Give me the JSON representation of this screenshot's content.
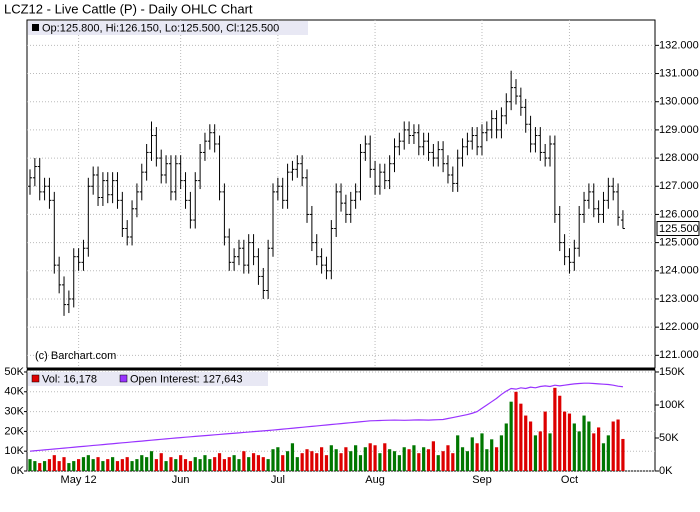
{
  "chart_data": [
    {
      "type": "ohlc",
      "title": "LCZ12 - Live Cattle (P) - Daily OHLC Chart",
      "info": "Op:125.800, Hi:126.150, Lo:125.500, Cl:125.500",
      "annotation": "(c) Barchart.com",
      "last_label": {
        "value": 125.5,
        "label": "125.500"
      },
      "color": "#000000",
      "grid": true,
      "ylim": [
        120.55,
        132.9
      ],
      "yticks": [
        {
          "value": 121,
          "label": "121.000"
        },
        {
          "value": 122,
          "label": "122.000"
        },
        {
          "value": 123,
          "label": "123.000"
        },
        {
          "value": 124,
          "label": "124.000"
        },
        {
          "value": 125,
          "label": "125.000"
        },
        {
          "value": 126,
          "label": "126.000"
        },
        {
          "value": 127,
          "label": "127.000"
        },
        {
          "value": 128,
          "label": "128.000"
        },
        {
          "value": 129,
          "label": "129.000"
        },
        {
          "value": 130,
          "label": "130.000"
        },
        {
          "value": 131,
          "label": "131.000"
        },
        {
          "value": 132,
          "label": "132.000"
        }
      ],
      "categories": [
        null,
        null,
        null,
        null,
        null,
        null,
        null,
        null,
        null,
        null,
        "May 12",
        null,
        null,
        null,
        null,
        null,
        null,
        null,
        null,
        null,
        null,
        null,
        null,
        null,
        null,
        null,
        null,
        null,
        null,
        null,
        null,
        "Jun",
        null,
        null,
        null,
        null,
        null,
        null,
        null,
        null,
        null,
        null,
        null,
        null,
        null,
        null,
        null,
        null,
        null,
        null,
        null,
        "Jul",
        null,
        null,
        null,
        null,
        null,
        null,
        null,
        null,
        null,
        null,
        null,
        null,
        null,
        null,
        null,
        null,
        null,
        null,
        null,
        "Aug",
        null,
        null,
        null,
        null,
        null,
        null,
        null,
        null,
        null,
        null,
        null,
        null,
        null,
        null,
        null,
        null,
        null,
        null,
        null,
        null,
        null,
        "Sep",
        null,
        null,
        null,
        null,
        null,
        null,
        null,
        null,
        null,
        null,
        null,
        null,
        null,
        null,
        null,
        null,
        null,
        "Oct",
        null,
        null,
        null,
        null,
        null,
        null,
        null,
        null,
        null,
        null,
        null
      ],
      "open": [
        127.0,
        127.3,
        127.7,
        126.8,
        127.0,
        126.5,
        124.2,
        123.5,
        122.8,
        123.0,
        124.5,
        124.3,
        124.8,
        127.0,
        127.4,
        126.6,
        127.2,
        126.7,
        127.2,
        126.5,
        125.5,
        125.2,
        126.2,
        126.8,
        127.5,
        128.2,
        128.8,
        128.0,
        127.4,
        127.8,
        126.8,
        127.8,
        127.2,
        126.5,
        125.8,
        127.2,
        128.2,
        128.6,
        128.9,
        128.5,
        126.8,
        125.2,
        124.3,
        124.5,
        124.8,
        124.2,
        125.0,
        124.5,
        123.8,
        123.3,
        124.8,
        126.8,
        127.0,
        126.5,
        127.5,
        127.6,
        127.8,
        127.3,
        126.0,
        125.0,
        124.5,
        124.2,
        124.0,
        125.5,
        126.8,
        126.4,
        126.0,
        126.5,
        126.8,
        128.2,
        128.5,
        127.6,
        127.0,
        127.5,
        127.2,
        127.8,
        128.4,
        128.6,
        129.0,
        128.8,
        128.9,
        128.4,
        128.6,
        128.2,
        128.0,
        128.3,
        127.8,
        127.4,
        127.1,
        128.0,
        128.4,
        128.6,
        128.8,
        128.4,
        128.9,
        129.0,
        129.4,
        129.0,
        129.5,
        130.0,
        130.5,
        130.2,
        129.8,
        129.2,
        128.5,
        128.8,
        128.2,
        128.0,
        128.5,
        126.0,
        125.0,
        124.5,
        124.3,
        124.8,
        126.0,
        126.5,
        126.8,
        126.2,
        126.0,
        126.5,
        127.0,
        126.8,
        125.8
      ],
      "high": [
        127.6,
        128.0,
        128.0,
        127.3,
        127.3,
        126.8,
        124.5,
        123.8,
        123.3,
        124.8,
        124.8,
        125.1,
        127.3,
        127.7,
        127.7,
        127.5,
        127.5,
        127.5,
        127.5,
        126.8,
        125.8,
        126.5,
        127.1,
        127.8,
        128.5,
        129.3,
        129.1,
        128.3,
        128.1,
        128.1,
        128.1,
        128.1,
        127.5,
        126.8,
        127.5,
        128.5,
        128.9,
        129.2,
        129.2,
        128.8,
        127.1,
        125.5,
        124.8,
        125.1,
        125.1,
        125.3,
        125.3,
        124.8,
        124.1,
        125.1,
        127.1,
        127.3,
        127.3,
        127.8,
        127.9,
        128.1,
        128.1,
        127.6,
        126.3,
        125.3,
        124.8,
        124.5,
        125.8,
        127.1,
        127.1,
        126.7,
        126.8,
        127.1,
        128.5,
        128.8,
        128.8,
        127.9,
        127.8,
        127.8,
        128.1,
        128.7,
        128.9,
        129.3,
        129.3,
        129.2,
        129.2,
        128.9,
        128.9,
        128.5,
        128.6,
        128.6,
        128.1,
        127.7,
        128.3,
        128.7,
        128.9,
        129.1,
        129.1,
        129.2,
        129.3,
        129.7,
        129.7,
        129.8,
        130.3,
        131.1,
        130.8,
        130.5,
        130.1,
        129.5,
        129.1,
        129.1,
        128.5,
        128.8,
        128.8,
        126.3,
        125.3,
        124.8,
        125.1,
        126.3,
        126.8,
        127.1,
        127.1,
        126.5,
        126.8,
        127.3,
        127.3,
        127.1,
        126.15
      ],
      "low": [
        126.7,
        127.0,
        126.5,
        126.5,
        126.2,
        123.9,
        123.2,
        122.4,
        122.5,
        122.7,
        124.0,
        124.0,
        124.5,
        126.7,
        126.3,
        126.3,
        126.4,
        126.4,
        126.2,
        125.2,
        124.9,
        124.9,
        125.9,
        126.5,
        127.2,
        127.9,
        127.7,
        127.1,
        127.1,
        126.5,
        126.5,
        126.9,
        126.2,
        125.5,
        125.5,
        126.9,
        127.9,
        128.3,
        128.2,
        126.5,
        124.9,
        124.0,
        124.0,
        124.2,
        123.9,
        123.9,
        124.2,
        123.5,
        123.0,
        123.0,
        124.5,
        126.5,
        126.2,
        126.2,
        127.2,
        127.3,
        127.0,
        125.7,
        124.7,
        124.2,
        123.9,
        123.7,
        123.7,
        125.2,
        126.1,
        125.7,
        125.7,
        126.2,
        126.5,
        127.9,
        127.3,
        126.7,
        126.7,
        126.9,
        126.9,
        127.5,
        128.1,
        128.3,
        128.5,
        128.5,
        128.1,
        128.1,
        127.9,
        127.7,
        127.7,
        127.5,
        127.1,
        126.8,
        126.8,
        127.7,
        128.1,
        128.3,
        128.1,
        128.1,
        128.6,
        128.7,
        128.7,
        128.7,
        129.2,
        129.7,
        129.9,
        129.5,
        128.9,
        128.2,
        128.2,
        127.9,
        127.7,
        127.7,
        125.7,
        124.7,
        124.2,
        123.9,
        124.0,
        124.5,
        125.7,
        126.2,
        125.9,
        125.7,
        125.7,
        126.2,
        126.5,
        125.6,
        125.5
      ],
      "close": [
        127.3,
        127.7,
        126.8,
        127.0,
        126.5,
        124.2,
        123.5,
        122.8,
        123.0,
        124.5,
        124.3,
        124.8,
        127.0,
        127.4,
        126.6,
        127.2,
        126.7,
        127.2,
        126.5,
        125.5,
        125.2,
        126.2,
        126.8,
        127.5,
        128.2,
        128.8,
        128.0,
        127.4,
        127.8,
        126.8,
        127.8,
        127.2,
        126.5,
        125.8,
        127.2,
        128.2,
        128.6,
        128.9,
        128.5,
        126.8,
        125.2,
        124.3,
        124.5,
        124.8,
        124.2,
        125.0,
        124.5,
        123.8,
        123.3,
        124.8,
        126.8,
        127.0,
        126.5,
        127.5,
        127.6,
        127.8,
        127.3,
        126.0,
        125.0,
        124.5,
        124.2,
        124.0,
        125.5,
        126.8,
        126.4,
        126.0,
        126.5,
        126.8,
        128.2,
        128.5,
        127.6,
        127.0,
        127.5,
        127.2,
        127.8,
        128.4,
        128.6,
        129.0,
        128.8,
        128.9,
        128.4,
        128.6,
        128.2,
        128.0,
        128.3,
        127.8,
        127.4,
        127.1,
        128.0,
        128.4,
        128.6,
        128.8,
        128.4,
        128.9,
        129.0,
        129.4,
        129.0,
        129.5,
        130.0,
        130.5,
        130.2,
        129.8,
        129.2,
        128.5,
        128.8,
        128.2,
        128.0,
        128.5,
        126.0,
        125.0,
        124.5,
        124.3,
        124.8,
        126.0,
        126.5,
        126.8,
        126.2,
        126.0,
        126.5,
        127.0,
        126.8,
        125.9,
        125.5
      ]
    },
    {
      "type": "volume",
      "grid": true,
      "ylim": [
        0,
        51000
      ],
      "yticks": [
        {
          "value": 0,
          "label": "0K"
        },
        {
          "value": 10000,
          "label": "10K"
        },
        {
          "value": 20000,
          "label": "20K"
        },
        {
          "value": 30000,
          "label": "30K"
        },
        {
          "value": 40000,
          "label": "40K"
        },
        {
          "value": 50000,
          "label": "50K"
        }
      ],
      "y2lim": [
        0,
        153000
      ],
      "y2ticks": [
        {
          "value": 0,
          "label": "0K"
        },
        {
          "value": 50000,
          "label": "50K"
        },
        {
          "value": 100000,
          "label": "100K"
        },
        {
          "value": 150000,
          "label": "150K"
        }
      ],
      "series": [
        {
          "name": "Vol: 16,178",
          "up_color": "#007700",
          "down_color": "#dd0000",
          "color": "#dd0000",
          "values": [
            6000,
            5000,
            4000,
            5000,
            6000,
            8000,
            5000,
            7000,
            4000,
            5000,
            6000,
            7000,
            8000,
            6000,
            7000,
            5000,
            6000,
            7000,
            5000,
            6000,
            7000,
            5000,
            6000,
            8000,
            7000,
            10000,
            6000,
            9000,
            5000,
            7000,
            6000,
            8000,
            6000,
            5000,
            7000,
            6000,
            8000,
            6000,
            7000,
            9000,
            6000,
            7000,
            8000,
            6000,
            10000,
            7000,
            9000,
            8000,
            7000,
            6000,
            11000,
            12000,
            8000,
            10000,
            14000,
            7000,
            9000,
            11000,
            10000,
            9000,
            12000,
            8000,
            13000,
            11000,
            9000,
            12000,
            10000,
            13000,
            8000,
            12000,
            14000,
            13000,
            9000,
            14000,
            11000,
            10000,
            8000,
            12000,
            11000,
            13000,
            9000,
            12000,
            11000,
            15000,
            8000,
            10000,
            13000,
            9000,
            18000,
            12000,
            10000,
            17000,
            14000,
            19000,
            11000,
            16000,
            12000,
            18000,
            24000,
            35000,
            40000,
            34000,
            28000,
            25000,
            18000,
            20000,
            30000,
            19000,
            42000,
            38000,
            30000,
            29000,
            24000,
            20000,
            28000,
            25000,
            19000,
            22000,
            14000,
            18000,
            25000,
            26000,
            16178
          ]
        },
        {
          "name": "Open Interest: 127,643",
          "color": "#9933ff",
          "axis": "y2",
          "values": [
            30000,
            30700,
            31300,
            32000,
            32700,
            33300,
            34000,
            34700,
            35300,
            36000,
            36700,
            37300,
            38000,
            38700,
            39300,
            40000,
            40700,
            41300,
            42000,
            42700,
            43300,
            44000,
            44700,
            45300,
            46000,
            46700,
            47300,
            48000,
            48700,
            49300,
            50000,
            50600,
            51200,
            51800,
            52400,
            53000,
            53600,
            54200,
            54800,
            55400,
            56000,
            56600,
            57200,
            57800,
            58400,
            59000,
            59600,
            60200,
            60800,
            61400,
            62000,
            62700,
            63400,
            64100,
            64800,
            65500,
            66200,
            66900,
            67600,
            68300,
            69000,
            69700,
            70400,
            71100,
            71800,
            72500,
            73200,
            73900,
            74600,
            75300,
            76000,
            76200,
            76500,
            76800,
            77000,
            77200,
            77000,
            76800,
            77000,
            77300,
            77500,
            77300,
            77100,
            77400,
            77700,
            78000,
            79500,
            81000,
            82500,
            84000,
            85500,
            87500,
            90000,
            95000,
            100000,
            105000,
            110000,
            116000,
            121000,
            125000,
            124000,
            126000,
            125000,
            127000,
            126000,
            128000,
            129000,
            128000,
            130000,
            129000,
            130000,
            131000,
            132000,
            132500,
            133000,
            133000,
            132500,
            132000,
            131500,
            131000,
            130000,
            128500,
            127643
          ]
        }
      ]
    }
  ]
}
